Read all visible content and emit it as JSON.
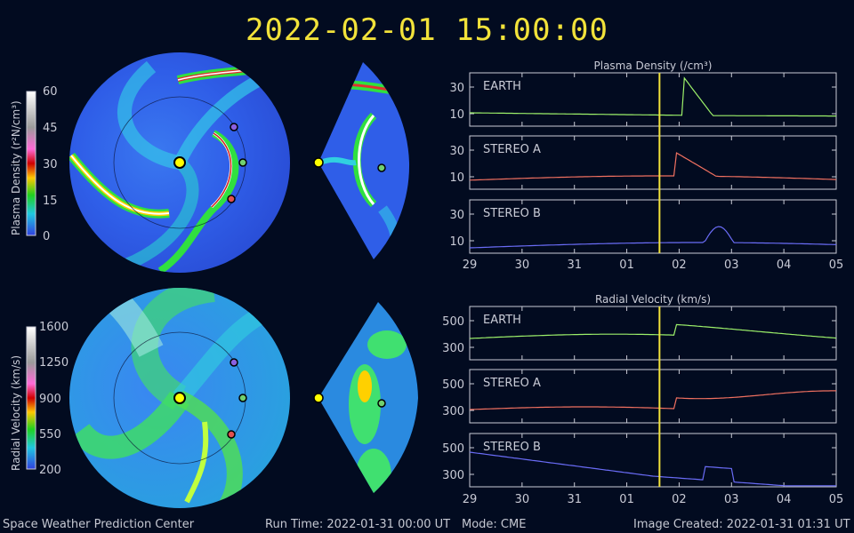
{
  "timestamp": "2022-02-01 15:00:00",
  "colorbars": {
    "density": {
      "label": "Plasma Density (r²N/cm³)",
      "ticks": [
        "60",
        "45",
        "30",
        "15",
        "0"
      ]
    },
    "velocity": {
      "label": "Radial Velocity (km/s)",
      "ticks": [
        "1600",
        "1250",
        "900",
        "550",
        "200"
      ]
    }
  },
  "panels": [
    {
      "title": "Plasma Density (/cm³)",
      "rows": [
        {
          "label": "EARTH",
          "ticks": [
            "30",
            "10"
          ],
          "color": "#9cf06a"
        },
        {
          "label": "STEREO A",
          "ticks": [
            "30",
            "10"
          ],
          "color": "#f07060"
        },
        {
          "label": "STEREO B",
          "ticks": [
            "30",
            "10"
          ],
          "color": "#6a6cf6"
        }
      ],
      "xticks": [
        "29",
        "30",
        "31",
        "01",
        "02",
        "03",
        "04",
        "05"
      ]
    },
    {
      "title": "Radial Velocity (km/s)",
      "rows": [
        {
          "label": "EARTH",
          "ticks": [
            "500",
            "300"
          ],
          "color": "#9cf06a"
        },
        {
          "label": "STEREO A",
          "ticks": [
            "500",
            "300"
          ],
          "color": "#f07060"
        },
        {
          "label": "STEREO B",
          "ticks": [
            "500",
            "300"
          ],
          "color": "#6a6cf6"
        }
      ],
      "xticks": [
        "29",
        "30",
        "31",
        "01",
        "02",
        "03",
        "04",
        "05"
      ]
    }
  ],
  "current_time_day": "01",
  "footer": {
    "org": "Space Weather Prediction Center",
    "run_time": "Run Time: 2022-01-31 00:00 UT",
    "mode": "Mode: CME",
    "created": "Image Created: 2022-01-31 01:31 UT"
  },
  "colors": {
    "title": "#f2e23a",
    "marker_line": "#f2e23a",
    "frame": "#c9cbd6"
  }
}
